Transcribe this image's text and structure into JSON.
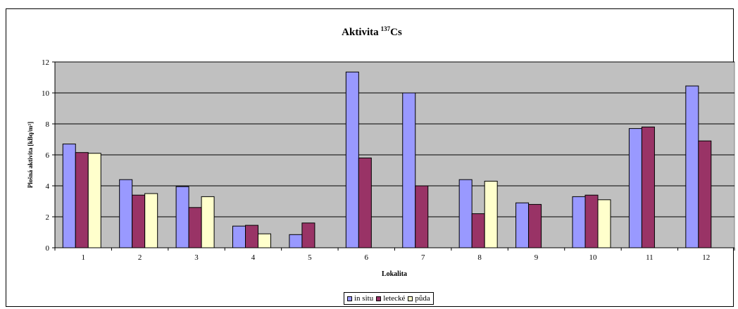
{
  "chart_data": {
    "type": "bar",
    "title": "Aktivita",
    "title_superscript": "137",
    "title_suffix": "Cs",
    "xlabel": "Lokalita",
    "ylabel": "Plošná aktivita [kBq/m²]",
    "ylim": [
      0,
      12
    ],
    "yticks": [
      0,
      2,
      4,
      6,
      8,
      10,
      12
    ],
    "grid": true,
    "legend_position": "bottom",
    "plot_background": "#c0c0c0",
    "categories": [
      "1",
      "2",
      "3",
      "4",
      "5",
      "6",
      "7",
      "8",
      "9",
      "10",
      "11",
      "12"
    ],
    "series": [
      {
        "name": "in situ",
        "color": "#9999ff",
        "values": [
          6.7,
          4.4,
          3.95,
          1.4,
          0.85,
          11.35,
          10.0,
          4.4,
          2.9,
          3.3,
          7.7,
          10.45
        ]
      },
      {
        "name": "letecké",
        "color": "#993366",
        "values": [
          6.15,
          3.4,
          2.6,
          1.45,
          1.6,
          5.8,
          4.0,
          2.2,
          2.8,
          3.4,
          7.8,
          6.9
        ]
      },
      {
        "name": "půda",
        "color": "#ffffcc",
        "values": [
          6.1,
          3.5,
          3.3,
          0.9,
          null,
          null,
          null,
          4.3,
          null,
          3.1,
          null,
          null
        ]
      }
    ]
  }
}
